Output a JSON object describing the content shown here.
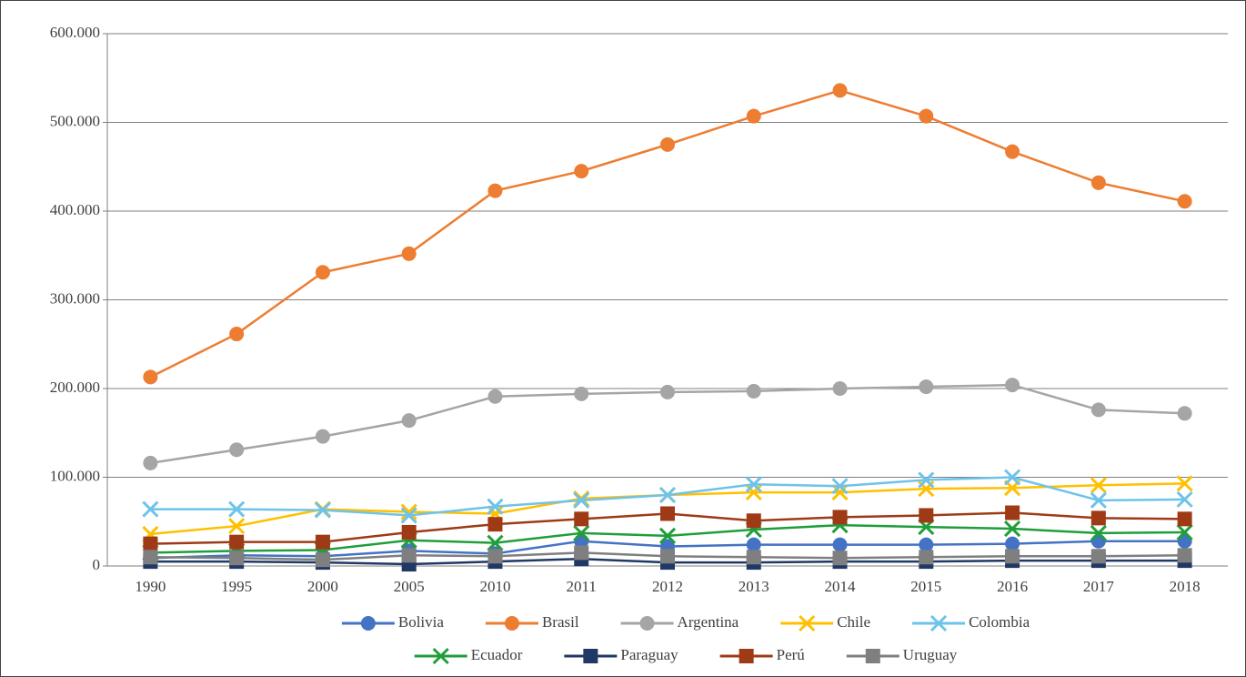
{
  "chart_data": {
    "type": "line",
    "categories": [
      "1990",
      "1995",
      "2000",
      "2005",
      "2010",
      "2011",
      "2012",
      "2013",
      "2014",
      "2015",
      "2016",
      "2017",
      "2018"
    ],
    "series": [
      {
        "name": "Bolivia",
        "color": "#4472c4",
        "marker": "circle",
        "values": [
          9000,
          12000,
          11000,
          17000,
          14000,
          28000,
          22000,
          24000,
          24000,
          24000,
          25000,
          28000,
          28000
        ]
      },
      {
        "name": "Brasil",
        "color": "#ed7d31",
        "marker": "circle",
        "values": [
          213000,
          261500,
          331000,
          352000,
          423000,
          445000,
          475000,
          507000,
          536000,
          507000,
          467000,
          432000,
          411000
        ]
      },
      {
        "name": "Argentina",
        "color": "#a5a5a5",
        "marker": "circle",
        "values": [
          116000,
          131000,
          146000,
          164000,
          191000,
          194000,
          196000,
          197000,
          200000,
          202000,
          204000,
          176000,
          172000
        ]
      },
      {
        "name": "Chile",
        "color": "#ffc000",
        "marker": "x",
        "values": [
          36000,
          45000,
          64000,
          61000,
          59000,
          76000,
          80000,
          83000,
          83000,
          87000,
          88000,
          91000,
          93000
        ]
      },
      {
        "name": "Colombia",
        "color": "#6ec3ea",
        "marker": "x",
        "values": [
          64000,
          64000,
          63000,
          57000,
          67000,
          74000,
          80000,
          92000,
          90000,
          97000,
          100000,
          74000,
          75000
        ]
      },
      {
        "name": "Ecuador",
        "color": "#1f9e3a",
        "marker": "x",
        "values": [
          15000,
          17000,
          18000,
          29000,
          26000,
          37000,
          34000,
          41000,
          46000,
          44000,
          42000,
          37000,
          38000
        ]
      },
      {
        "name": "Paraguay",
        "color": "#203864",
        "marker": "square",
        "values": [
          5000,
          5000,
          4000,
          2000,
          5000,
          8000,
          4000,
          4000,
          5000,
          5000,
          6000,
          6000,
          6000
        ]
      },
      {
        "name": "Perú",
        "color": "#9e3b16",
        "marker": "square",
        "values": [
          25000,
          27000,
          27000,
          38000,
          47000,
          53000,
          59000,
          51000,
          55000,
          57000,
          60000,
          54000,
          53000
        ]
      },
      {
        "name": "Uruguay",
        "color": "#7f7f7f",
        "marker": "square",
        "values": [
          10000,
          9000,
          7000,
          12000,
          11000,
          15000,
          11000,
          10000,
          9000,
          10000,
          11000,
          11000,
          12000
        ]
      }
    ],
    "ylim": [
      0,
      600000
    ],
    "yticks": [
      0,
      {
        "value": 100000,
        "label": "100.000"
      },
      {
        "value": 200000,
        "label": "200.000"
      },
      {
        "value": 300000,
        "label": "300.000"
      },
      {
        "value": 400000,
        "label": "400.000"
      },
      {
        "value": 500000,
        "label": "500.000"
      },
      {
        "value": 600000,
        "label": "600.000"
      }
    ],
    "grid": true,
    "legend": "bottom"
  }
}
